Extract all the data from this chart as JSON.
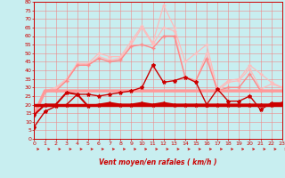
{
  "xlabel": "Vent moyen/en rafales ( km/h )",
  "background_color": "#c8eef0",
  "grid_color": "#ee8888",
  "xmin": 0,
  "xmax": 23,
  "ymin": 0,
  "ymax": 80,
  "yticks": [
    0,
    5,
    10,
    15,
    20,
    25,
    30,
    35,
    40,
    45,
    50,
    55,
    60,
    65,
    70,
    75,
    80
  ],
  "xticks": [
    0,
    1,
    2,
    3,
    4,
    5,
    6,
    7,
    8,
    9,
    10,
    11,
    12,
    13,
    14,
    15,
    16,
    17,
    18,
    19,
    20,
    21,
    22,
    23
  ],
  "lines": [
    {
      "x": [
        0,
        1,
        2,
        3,
        4,
        5,
        6,
        7,
        8,
        9,
        10,
        11,
        12,
        13,
        14,
        15,
        16,
        17,
        18,
        19,
        20,
        21,
        22,
        23
      ],
      "y": [
        14,
        28,
        30,
        35,
        44,
        44,
        50,
        48,
        48,
        57,
        66,
        56,
        78,
        65,
        45,
        50,
        55,
        29,
        34,
        35,
        43,
        38,
        33,
        30
      ],
      "color": "#ffbbbb",
      "lw": 0.9,
      "marker": "+",
      "ms": 3.5
    },
    {
      "x": [
        0,
        1,
        2,
        3,
        4,
        5,
        6,
        7,
        8,
        9,
        10,
        11,
        12,
        13,
        14,
        15,
        16,
        17,
        18,
        19,
        20,
        21,
        22,
        23
      ],
      "y": [
        14,
        28,
        29,
        34,
        44,
        43,
        48,
        46,
        47,
        55,
        65,
        55,
        65,
        63,
        36,
        34,
        50,
        28,
        33,
        34,
        41,
        29,
        32,
        30
      ],
      "color": "#ffbbbb",
      "lw": 0.9,
      "marker": "+",
      "ms": 3.5
    },
    {
      "x": [
        0,
        1,
        2,
        3,
        4,
        5,
        6,
        7,
        8,
        9,
        10,
        11,
        12,
        13,
        14,
        15,
        16,
        17,
        18,
        19,
        20,
        21,
        22,
        23
      ],
      "y": [
        14,
        28,
        28,
        34,
        43,
        43,
        47,
        45,
        46,
        54,
        55,
        53,
        60,
        60,
        36,
        34,
        47,
        28,
        30,
        30,
        38,
        28,
        28,
        28
      ],
      "color": "#ff8888",
      "lw": 1.0,
      "marker": "+",
      "ms": 3.5
    },
    {
      "x": [
        0,
        1,
        2,
        3,
        4,
        5,
        6,
        7,
        8,
        9,
        10,
        11,
        12,
        13,
        14,
        15,
        16,
        17,
        18,
        19,
        20,
        21,
        22,
        23
      ],
      "y": [
        14,
        28,
        28,
        28,
        28,
        28,
        28,
        28,
        28,
        28,
        28,
        28,
        28,
        28,
        28,
        28,
        28,
        28,
        28,
        28,
        28,
        28,
        28,
        28
      ],
      "color": "#ff9999",
      "lw": 2.5,
      "marker": null,
      "ms": 0
    },
    {
      "x": [
        0,
        1,
        2,
        3,
        4,
        5,
        6,
        7,
        8,
        9,
        10,
        11,
        12,
        13,
        14,
        15,
        16,
        17,
        18,
        19,
        20,
        21,
        22,
        23
      ],
      "y": [
        7,
        16,
        19,
        20,
        26,
        26,
        25,
        26,
        27,
        28,
        30,
        43,
        33,
        34,
        36,
        33,
        20,
        29,
        22,
        22,
        25,
        17,
        21,
        21
      ],
      "color": "#cc0000",
      "lw": 1.0,
      "marker": "*",
      "ms": 3
    },
    {
      "x": [
        0,
        1,
        2,
        3,
        4,
        5,
        6,
        7,
        8,
        9,
        10,
        11,
        12,
        13,
        14,
        15,
        16,
        17,
        18,
        19,
        20,
        21,
        22,
        23
      ],
      "y": [
        20,
        20,
        20,
        20,
        20,
        20,
        20,
        20,
        20,
        20,
        20,
        20,
        20,
        20,
        20,
        20,
        20,
        20,
        20,
        20,
        20,
        20,
        20,
        20
      ],
      "color": "#cc0000",
      "lw": 2.5,
      "marker": null,
      "ms": 0
    },
    {
      "x": [
        0,
        1,
        2,
        3,
        4,
        5,
        6,
        7,
        8,
        9,
        10,
        11,
        12,
        13,
        14,
        15,
        16,
        17,
        18,
        19,
        20,
        21,
        22,
        23
      ],
      "y": [
        14,
        20,
        20,
        27,
        26,
        19,
        20,
        21,
        20,
        20,
        21,
        20,
        21,
        20,
        20,
        20,
        20,
        20,
        20,
        20,
        20,
        20,
        20,
        21
      ],
      "color": "#cc0000",
      "lw": 1.5,
      "marker": "*",
      "ms": 3
    }
  ]
}
